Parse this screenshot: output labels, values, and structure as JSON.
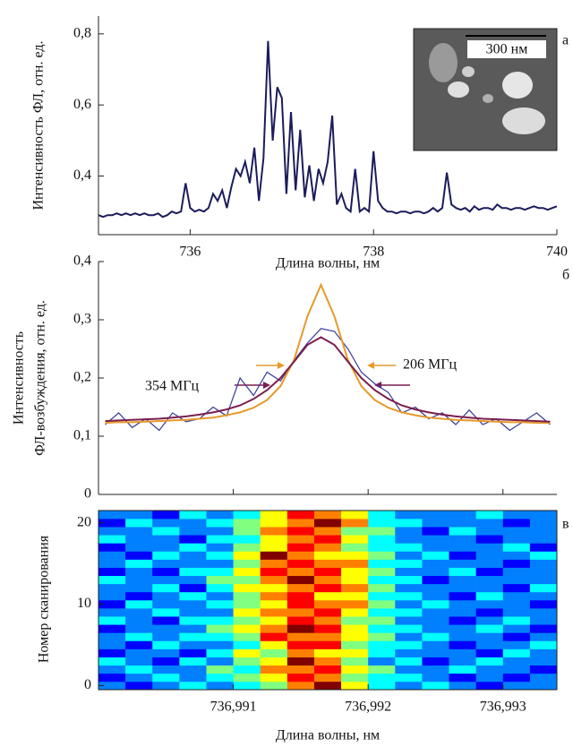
{
  "chart_data": [
    {
      "type": "line",
      "panel_label": "а",
      "ylabel": "Интенсивность ФЛ, отн. ед.",
      "xlabel": "Длина волны, нм",
      "inset_label": "300 нм",
      "xlim": [
        735,
        740
      ],
      "ylim": [
        0.235,
        0.85
      ],
      "xticks": [
        736,
        738,
        740
      ],
      "yticks": [
        {
          "value": 0.4,
          "label": "0,4"
        },
        {
          "value": 0.6,
          "label": "0,6"
        },
        {
          "value": 0.8,
          "label": "0,8"
        }
      ],
      "x": [
        735.0,
        735.05,
        735.1,
        735.15,
        735.2,
        735.25,
        735.3,
        735.35,
        735.4,
        735.45,
        735.5,
        735.55,
        735.6,
        735.65,
        735.7,
        735.75,
        735.8,
        735.85,
        735.9,
        735.95,
        736.0,
        736.05,
        736.1,
        736.15,
        736.2,
        736.25,
        736.3,
        736.35,
        736.4,
        736.45,
        736.5,
        736.55,
        736.6,
        736.65,
        736.7,
        736.75,
        736.8,
        736.85,
        736.9,
        736.95,
        737.0,
        737.05,
        737.1,
        737.15,
        737.2,
        737.25,
        737.3,
        737.35,
        737.4,
        737.45,
        737.5,
        737.55,
        737.6,
        737.65,
        737.7,
        737.75,
        737.8,
        737.85,
        737.9,
        737.95,
        738.0,
        738.05,
        738.1,
        738.15,
        738.2,
        738.25,
        738.3,
        738.35,
        738.4,
        738.45,
        738.5,
        738.55,
        738.6,
        738.65,
        738.7,
        738.75,
        738.8,
        738.85,
        738.9,
        738.95,
        739.0,
        739.05,
        739.1,
        739.15,
        739.2,
        739.25,
        739.3,
        739.35,
        739.4,
        739.45,
        739.5,
        739.55,
        739.6,
        739.65,
        739.7,
        739.75,
        739.8,
        739.85,
        739.9,
        739.95,
        740.0
      ],
      "series": [
        {
          "color": "#1c1c5c",
          "values": [
            0.29,
            0.285,
            0.29,
            0.29,
            0.295,
            0.29,
            0.295,
            0.29,
            0.295,
            0.29,
            0.295,
            0.29,
            0.29,
            0.295,
            0.285,
            0.29,
            0.3,
            0.295,
            0.3,
            0.38,
            0.31,
            0.3,
            0.305,
            0.3,
            0.31,
            0.35,
            0.33,
            0.36,
            0.31,
            0.37,
            0.42,
            0.4,
            0.44,
            0.38,
            0.48,
            0.33,
            0.45,
            0.78,
            0.5,
            0.65,
            0.62,
            0.35,
            0.58,
            0.36,
            0.53,
            0.34,
            0.43,
            0.33,
            0.42,
            0.38,
            0.44,
            0.57,
            0.32,
            0.35,
            0.31,
            0.3,
            0.42,
            0.3,
            0.31,
            0.3,
            0.47,
            0.33,
            0.31,
            0.3,
            0.3,
            0.295,
            0.3,
            0.3,
            0.295,
            0.3,
            0.3,
            0.295,
            0.3,
            0.31,
            0.3,
            0.31,
            0.41,
            0.32,
            0.31,
            0.305,
            0.31,
            0.3,
            0.315,
            0.305,
            0.31,
            0.31,
            0.305,
            0.32,
            0.31,
            0.31,
            0.305,
            0.31,
            0.31,
            0.305,
            0.31,
            0.315,
            0.31,
            0.31,
            0.305,
            0.31,
            0.315
          ]
        }
      ]
    },
    {
      "type": "line",
      "panel_label": "б",
      "ylabel": [
        "Интенсивность",
        "ФЛ-возбуждения, отн. ед."
      ],
      "annotations": [
        "354 МГц",
        "206 МГц"
      ],
      "xlim": [
        736.99,
        736.9934
      ],
      "ylim": [
        0,
        0.4
      ],
      "xticks": [
        736.991,
        736.992,
        736.993
      ],
      "yticks": [
        0,
        {
          "value": 0.1,
          "label": "0,1"
        },
        {
          "value": 0.2,
          "label": "0,2"
        },
        {
          "value": 0.3,
          "label": "0,3"
        },
        {
          "value": 0.4,
          "label": "0,4"
        }
      ],
      "x": [
        736.99005,
        736.99015,
        736.99025,
        736.99035,
        736.99045,
        736.99055,
        736.99065,
        736.99075,
        736.99085,
        736.99095,
        736.99105,
        736.99115,
        736.99125,
        736.99135,
        736.99145,
        736.99155,
        736.99165,
        736.99175,
        736.99185,
        736.99195,
        736.99205,
        736.99215,
        736.99225,
        736.99235,
        736.99245,
        736.99255,
        736.99265,
        736.99275,
        736.99285,
        736.99295,
        736.99305,
        736.99315,
        736.99325,
        736.99335
      ],
      "series": [
        {
          "color": "#3a3a9c",
          "values": [
            0.12,
            0.14,
            0.115,
            0.13,
            0.11,
            0.14,
            0.125,
            0.13,
            0.15,
            0.135,
            0.2,
            0.17,
            0.21,
            0.195,
            0.23,
            0.26,
            0.285,
            0.28,
            0.25,
            0.21,
            0.19,
            0.175,
            0.14,
            0.15,
            0.13,
            0.14,
            0.12,
            0.145,
            0.12,
            0.13,
            0.11,
            0.125,
            0.14,
            0.12
          ]
        },
        {
          "color": "#e59a2a",
          "values": [
            0.123,
            0.124,
            0.124,
            0.125,
            0.126,
            0.127,
            0.128,
            0.13,
            0.132,
            0.136,
            0.141,
            0.149,
            0.162,
            0.186,
            0.231,
            0.306,
            0.36,
            0.306,
            0.231,
            0.186,
            0.162,
            0.149,
            0.141,
            0.136,
            0.132,
            0.13,
            0.128,
            0.127,
            0.126,
            0.125,
            0.124,
            0.124,
            0.123,
            0.123
          ]
        },
        {
          "color": "#7a1f4e",
          "values": [
            0.126,
            0.127,
            0.128,
            0.129,
            0.13,
            0.132,
            0.134,
            0.137,
            0.141,
            0.146,
            0.153,
            0.164,
            0.179,
            0.2,
            0.228,
            0.257,
            0.27,
            0.257,
            0.228,
            0.2,
            0.179,
            0.164,
            0.153,
            0.146,
            0.141,
            0.137,
            0.134,
            0.132,
            0.13,
            0.129,
            0.128,
            0.127,
            0.126,
            0.125
          ]
        }
      ]
    },
    {
      "type": "heatmap",
      "panel_label": "в",
      "ylabel": "Номер сканирования",
      "xlabel": "Длина волны, нм",
      "xlim": [
        736.99,
        736.9934
      ],
      "ylim": [
        -0.5,
        21.5
      ],
      "xticks": [
        {
          "value": 736.991,
          "label": "736,991"
        },
        {
          "value": 736.992,
          "label": "736,992"
        },
        {
          "value": 736.993,
          "label": "736,993"
        }
      ],
      "yticks": [
        0,
        10,
        20
      ],
      "x": [
        736.9901,
        736.9903,
        736.9905,
        736.9907,
        736.9909,
        736.9911,
        736.9913,
        736.9915,
        736.9917,
        736.9919,
        736.9921,
        736.9923,
        736.9925,
        736.9927,
        736.9929,
        736.9931,
        736.9933
      ],
      "y": [
        0,
        1,
        2,
        3,
        4,
        5,
        6,
        7,
        8,
        9,
        10,
        11,
        12,
        13,
        14,
        15,
        16,
        17,
        18,
        19,
        20,
        21
      ],
      "z": [
        [
          2,
          1,
          2,
          3,
          2,
          3,
          4,
          6,
          8,
          5,
          3,
          2,
          3,
          2,
          1,
          2,
          2
        ],
        [
          1,
          2,
          3,
          2,
          3,
          4,
          5,
          7,
          6,
          4,
          3,
          3,
          2,
          1,
          2,
          1,
          2
        ],
        [
          2,
          3,
          2,
          2,
          4,
          3,
          6,
          6,
          7,
          5,
          4,
          2,
          2,
          3,
          2,
          2,
          1
        ],
        [
          3,
          2,
          1,
          3,
          2,
          4,
          5,
          8,
          6,
          4,
          2,
          3,
          1,
          2,
          3,
          2,
          2
        ],
        [
          1,
          2,
          2,
          1,
          3,
          5,
          4,
          6,
          5,
          5,
          3,
          2,
          2,
          2,
          1,
          3,
          2
        ],
        [
          2,
          1,
          3,
          2,
          2,
          3,
          5,
          7,
          7,
          4,
          3,
          3,
          2,
          1,
          2,
          2,
          3
        ],
        [
          2,
          3,
          2,
          3,
          3,
          4,
          7,
          6,
          6,
          5,
          4,
          2,
          3,
          2,
          2,
          1,
          2
        ],
        [
          1,
          2,
          2,
          2,
          4,
          5,
          6,
          8,
          7,
          5,
          3,
          3,
          2,
          2,
          3,
          2,
          1
        ],
        [
          3,
          2,
          1,
          3,
          3,
          4,
          5,
          7,
          6,
          4,
          4,
          2,
          2,
          1,
          2,
          3,
          2
        ],
        [
          2,
          2,
          3,
          2,
          2,
          5,
          6,
          6,
          7,
          5,
          3,
          3,
          2,
          2,
          1,
          2,
          2
        ],
        [
          1,
          3,
          2,
          2,
          3,
          4,
          5,
          7,
          6,
          6,
          4,
          2,
          3,
          2,
          2,
          2,
          1
        ],
        [
          2,
          1,
          2,
          3,
          2,
          4,
          6,
          7,
          5,
          5,
          3,
          3,
          2,
          1,
          3,
          2,
          2
        ],
        [
          2,
          2,
          3,
          1,
          3,
          5,
          5,
          6,
          7,
          6,
          4,
          2,
          2,
          2,
          2,
          1,
          3
        ],
        [
          3,
          2,
          2,
          2,
          4,
          4,
          6,
          8,
          6,
          5,
          3,
          3,
          1,
          2,
          2,
          2,
          2
        ],
        [
          1,
          2,
          1,
          3,
          3,
          5,
          7,
          6,
          7,
          5,
          4,
          2,
          2,
          3,
          1,
          2,
          2
        ],
        [
          2,
          3,
          2,
          2,
          2,
          4,
          6,
          7,
          6,
          6,
          3,
          3,
          2,
          2,
          2,
          1,
          2
        ],
        [
          2,
          1,
          3,
          2,
          3,
          5,
          8,
          6,
          5,
          5,
          4,
          2,
          3,
          1,
          2,
          2,
          3
        ],
        [
          1,
          2,
          2,
          3,
          2,
          4,
          5,
          7,
          6,
          4,
          3,
          3,
          2,
          2,
          2,
          3,
          1
        ],
        [
          3,
          2,
          2,
          1,
          3,
          3,
          5,
          6,
          7,
          5,
          3,
          2,
          2,
          2,
          1,
          2,
          2
        ],
        [
          2,
          2,
          3,
          2,
          2,
          4,
          6,
          7,
          6,
          4,
          4,
          2,
          1,
          3,
          2,
          2,
          2
        ],
        [
          1,
          3,
          2,
          2,
          3,
          4,
          5,
          6,
          8,
          6,
          3,
          3,
          2,
          2,
          2,
          1,
          2
        ],
        [
          2,
          2,
          1,
          3,
          2,
          3,
          5,
          7,
          6,
          5,
          3,
          2,
          2,
          2,
          3,
          2,
          2
        ]
      ]
    }
  ]
}
